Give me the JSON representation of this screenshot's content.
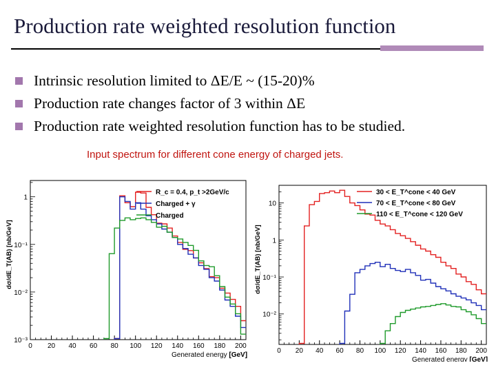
{
  "title": "Production rate weighted resolution function",
  "bullets": [
    {
      "icon": "square-bullet-icon",
      "text": "Intrinsic resolution limited to ΔE/E ~ (15-20)%"
    },
    {
      "icon": "square-bullet-icon",
      "text": "Production rate changes factor of 3 within ΔE"
    },
    {
      "icon": "square-bullet-icon",
      "text": "Production rate weighted resolution function has to be studied."
    }
  ],
  "caption": "Input spectrum for different cone energy of charged jets.",
  "colors": {
    "accent": "#b08ab8",
    "bullet": "#a277ad",
    "caption": "#c0140f",
    "red": "#e32020",
    "blue": "#1f2fb8",
    "green": "#1e9a2a"
  },
  "chart_data": [
    {
      "type": "line",
      "step": true,
      "xlabel": "Generated energy",
      "xunit": "[GeV]",
      "ylabel": "dσ/dE_T(AB) [nb/GeV]",
      "xlim": [
        0,
        205
      ],
      "ylim": [
        0.001,
        2.2
      ],
      "yscale": "log",
      "xticks": [
        0,
        20,
        40,
        60,
        80,
        100,
        120,
        140,
        160,
        180,
        200
      ],
      "yticks": [
        {
          "v": 0.001,
          "label": "10⁻³"
        },
        {
          "v": 0.01,
          "label": "10⁻²"
        },
        {
          "v": 0.1,
          "label": "10⁻¹"
        },
        {
          "v": 1,
          "label": "1"
        }
      ],
      "legend_position": "top-right",
      "legend": [
        {
          "label": "R_c = 0.4, p_t >2GeV/c"
        },
        {
          "label": "Charged + γ"
        },
        {
          "label": "Charged"
        }
      ],
      "series": [
        {
          "color": "#e32020",
          "x": [
            80,
            85,
            90,
            95,
            100,
            105,
            110,
            115,
            120,
            125,
            130,
            135,
            140,
            145,
            150,
            155,
            160,
            165,
            170,
            175,
            180,
            185,
            190,
            195,
            200
          ],
          "y": [
            0.00105,
            1.05,
            0.75,
            0.62,
            1.25,
            1.2,
            0.6,
            0.42,
            0.28,
            0.27,
            0.22,
            0.15,
            0.11,
            0.079,
            0.074,
            0.052,
            0.041,
            0.031,
            0.021,
            0.02,
            0.012,
            0.0095,
            0.007,
            0.005,
            0.0025
          ]
        },
        {
          "color": "#1f2fb8",
          "x": [
            80,
            85,
            90,
            95,
            100,
            105,
            110,
            115,
            120,
            125,
            130,
            135,
            140,
            145,
            150,
            155,
            160,
            165,
            170,
            175,
            180,
            185,
            190,
            195,
            200
          ],
          "y": [
            0.00105,
            1.0,
            0.8,
            0.55,
            0.75,
            0.55,
            0.4,
            0.33,
            0.27,
            0.21,
            0.18,
            0.14,
            0.1,
            0.082,
            0.062,
            0.052,
            0.036,
            0.03,
            0.02,
            0.017,
            0.011,
            0.0068,
            0.005,
            0.0031,
            0.0018
          ]
        },
        {
          "color": "#1e9a2a",
          "x": [
            70,
            75,
            80,
            85,
            90,
            95,
            100,
            105,
            110,
            115,
            120,
            125,
            130,
            135,
            140,
            145,
            150,
            155,
            160,
            165,
            170,
            175,
            180,
            185,
            190,
            195,
            200
          ],
          "y": [
            0.00105,
            0.064,
            0.22,
            0.32,
            0.36,
            0.33,
            0.35,
            0.36,
            0.33,
            0.29,
            0.23,
            0.24,
            0.18,
            0.14,
            0.13,
            0.11,
            0.095,
            0.075,
            0.045,
            0.036,
            0.034,
            0.022,
            0.013,
            0.0078,
            0.0056,
            0.0035,
            0.0013
          ]
        }
      ]
    },
    {
      "type": "line",
      "step": true,
      "xlabel": "Generated energy",
      "xunit": "[GeV]",
      "ylabel": "dσ/dE_T(AB) [nb/GeV]",
      "xlim": [
        0,
        205
      ],
      "ylim": [
        0.0015,
        30
      ],
      "yscale": "log",
      "xticks": [
        0,
        20,
        40,
        60,
        80,
        100,
        120,
        140,
        160,
        180,
        200
      ],
      "yticks": [
        {
          "v": 0.01,
          "label": "10⁻²"
        },
        {
          "v": 0.1,
          "label": "10⁻¹"
        },
        {
          "v": 1,
          "label": "1"
        },
        {
          "v": 10,
          "label": "10"
        }
      ],
      "legend_position": "top-right",
      "legend": [
        {
          "label": "30 < E_T^cone < 40 GeV"
        },
        {
          "label": "70 < E_T^cone < 80 GeV"
        },
        {
          "label": "110 < E_T^cone < 120 GeV"
        }
      ],
      "series": [
        {
          "color": "#e32020",
          "x": [
            20,
            25,
            30,
            35,
            40,
            45,
            50,
            55,
            60,
            65,
            70,
            75,
            80,
            85,
            90,
            95,
            100,
            105,
            110,
            115,
            120,
            125,
            130,
            135,
            140,
            145,
            150,
            155,
            160,
            165,
            170,
            175,
            180,
            185,
            190,
            195,
            200
          ],
          "y": [
            0.0016,
            2.4,
            9,
            11,
            18,
            19,
            21,
            19,
            22,
            15,
            10,
            8.5,
            6.5,
            5,
            4.7,
            3.4,
            2.7,
            2.4,
            1.9,
            1.5,
            1.3,
            1.1,
            0.9,
            0.72,
            0.57,
            0.5,
            0.4,
            0.34,
            0.25,
            0.2,
            0.17,
            0.12,
            0.1,
            0.075,
            0.063,
            0.045,
            0.035
          ]
        },
        {
          "color": "#1f2fb8",
          "x": [
            60,
            65,
            70,
            75,
            80,
            85,
            90,
            95,
            100,
            105,
            110,
            115,
            120,
            125,
            130,
            135,
            140,
            145,
            150,
            155,
            160,
            165,
            170,
            175,
            180,
            185,
            190,
            195,
            200
          ],
          "y": [
            0.0016,
            0.012,
            0.034,
            0.13,
            0.16,
            0.2,
            0.23,
            0.25,
            0.19,
            0.22,
            0.17,
            0.15,
            0.14,
            0.16,
            0.13,
            0.11,
            0.082,
            0.086,
            0.068,
            0.055,
            0.048,
            0.042,
            0.035,
            0.03,
            0.027,
            0.024,
            0.02,
            0.017,
            0.013
          ]
        },
        {
          "color": "#1e9a2a",
          "x": [
            100,
            105,
            110,
            115,
            120,
            125,
            130,
            135,
            140,
            145,
            150,
            155,
            160,
            165,
            170,
            175,
            180,
            185,
            190,
            195,
            200
          ],
          "y": [
            0.0016,
            0.0035,
            0.0055,
            0.0085,
            0.011,
            0.0125,
            0.0135,
            0.0145,
            0.0155,
            0.016,
            0.017,
            0.018,
            0.019,
            0.0175,
            0.016,
            0.0155,
            0.013,
            0.0115,
            0.0095,
            0.0075,
            0.0055
          ]
        }
      ]
    }
  ]
}
